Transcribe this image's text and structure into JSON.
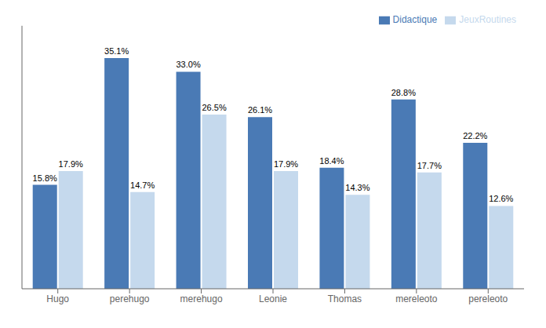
{
  "chart_data": {
    "type": "bar",
    "categories": [
      "Hugo",
      "perehugo",
      "merehugo",
      "Leonie",
      "Thomas",
      "mereleoto",
      "pereleoto"
    ],
    "series": [
      {
        "name": "Didactique",
        "color": "#4a7ab5",
        "values": [
          15.8,
          35.1,
          33.0,
          26.1,
          18.4,
          28.8,
          22.2
        ],
        "value_labels": [
          "15.8%",
          "35.1%",
          "33.0%",
          "26.1%",
          "18.4%",
          "28.8%",
          "22.2%"
        ]
      },
      {
        "name": "JeuxRoutines",
        "color": "#c5d9ed",
        "values": [
          17.9,
          14.7,
          26.5,
          17.9,
          14.3,
          17.7,
          12.6
        ],
        "value_labels": [
          "17.9%",
          "14.7%",
          "26.5%",
          "17.9%",
          "14.3%",
          "17.7%",
          "12.6%"
        ]
      }
    ],
    "ylim": [
      0,
      40
    ],
    "grid": false,
    "legend": "upper right",
    "data_labels": true,
    "tick_labels": "x"
  }
}
